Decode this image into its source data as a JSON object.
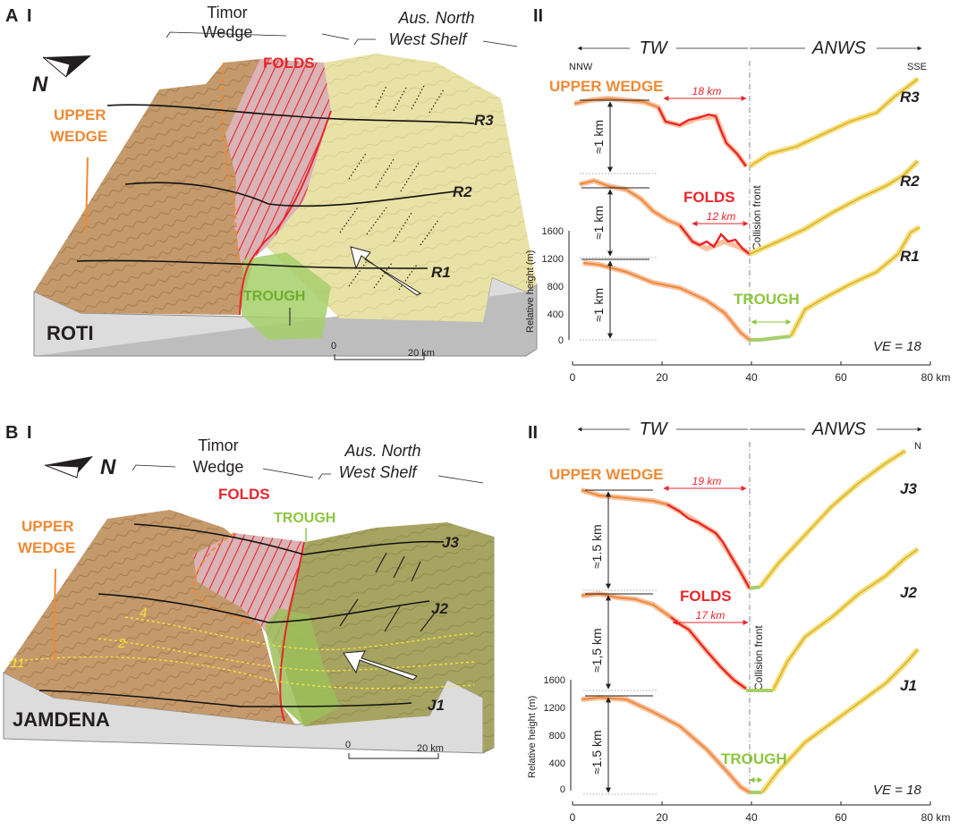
{
  "colors": {
    "upper_wedge": "#ee8a35",
    "folds": "#e8262c",
    "trough": "#8cc63f",
    "shelf": "#e9e2a6",
    "wedge_terrain": "#c49a6c",
    "axis": "#231f20",
    "profile_orange": "#ec8a3c",
    "profile_yellow": "#f2d86a"
  },
  "icons": {
    "north_arrow": "north-arrow-icon",
    "convergence_arrow": "convergence-arrow-icon",
    "scale_bar": "scale-bar-icon"
  },
  "panel_A": {
    "letter": "A",
    "block": {
      "numeral": "I",
      "north_label": "N",
      "timor_wedge_label_1": "Timor",
      "timor_wedge_label_2": "Wedge",
      "shelf_label_1": "Aus. North",
      "shelf_label_2": "West Shelf",
      "upper_wedge_1": "UPPER",
      "upper_wedge_2": "WEDGE",
      "folds": "FOLDS",
      "trough": "TROUGH",
      "island": "ROTI",
      "profiles": [
        "R3",
        "R2",
        "R1"
      ],
      "scale_0": "0",
      "scale_20": "20 km"
    },
    "profiles": {
      "numeral": "II",
      "tw": "TW",
      "anws": "ANWS",
      "left_dir": "NNW",
      "right_dir": "SSE",
      "upper_wedge": "UPPER WEDGE",
      "folds": "FOLDS",
      "trough": "TROUGH",
      "dist_upper": "18 km",
      "dist_folds": "12 km",
      "collision_front": "Collision front",
      "vert_scale": [
        "≈1 km",
        "≈1 km",
        "≈1 km"
      ],
      "labels": [
        "R3",
        "R2",
        "R1"
      ],
      "ve": "VE = 18",
      "ylabel": "Relative height (m)",
      "yticks": [
        "1600",
        "1200",
        "800",
        "400",
        "0"
      ],
      "xticks": [
        "0",
        "20",
        "40",
        "60",
        "80 km"
      ]
    }
  },
  "panel_B": {
    "letter": "B",
    "block": {
      "numeral": "I",
      "north_label": "N",
      "timor_wedge_label_1": "Timor",
      "timor_wedge_label_2": "Wedge",
      "shelf_label_1": "Aus. North",
      "shelf_label_2": "West Shelf",
      "upper_wedge_1": "UPPER",
      "upper_wedge_2": "WEDGE",
      "folds": "FOLDS",
      "trough": "TROUGH",
      "island": "JAMDENA",
      "profiles": [
        "J3",
        "J2",
        "J1"
      ],
      "contours": [
        "4",
        "2",
        "11"
      ],
      "scale_0": "0",
      "scale_20": "20 km"
    },
    "profiles": {
      "numeral": "II",
      "tw": "TW",
      "anws": "ANWS",
      "right_dir": "N",
      "upper_wedge": "UPPER WEDGE",
      "folds": "FOLDS",
      "trough": "TROUGH",
      "dist_upper": "19 km",
      "dist_folds": "17 km",
      "collision_front": "Collision front",
      "vert_scale": [
        "≈1.5 km",
        "≈1,5 km",
        "≈1.5 km"
      ],
      "labels": [
        "J3",
        "J2",
        "J1"
      ],
      "ve": "VE = 18",
      "ylabel": "Relative height (m)",
      "yticks": [
        "1600",
        "1200",
        "800",
        "400",
        "0"
      ],
      "xticks": [
        "0",
        "20",
        "40",
        "60",
        "80 km"
      ]
    }
  }
}
